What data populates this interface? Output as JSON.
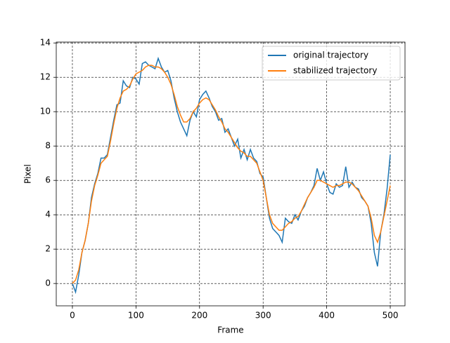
{
  "chart_data": {
    "type": "line",
    "x_label": "Frame",
    "y_label": "Pixel",
    "x": [
      0,
      5,
      10,
      15,
      20,
      25,
      30,
      35,
      40,
      45,
      50,
      55,
      60,
      65,
      70,
      75,
      80,
      85,
      90,
      95,
      100,
      105,
      110,
      115,
      120,
      125,
      130,
      135,
      140,
      145,
      150,
      155,
      160,
      165,
      170,
      175,
      180,
      185,
      190,
      195,
      200,
      205,
      210,
      215,
      220,
      225,
      230,
      235,
      240,
      245,
      250,
      255,
      260,
      265,
      270,
      275,
      280,
      285,
      290,
      295,
      300,
      305,
      310,
      315,
      320,
      325,
      330,
      335,
      340,
      345,
      350,
      355,
      360,
      365,
      370,
      375,
      380,
      385,
      390,
      395,
      400,
      405,
      410,
      415,
      420,
      425,
      430,
      435,
      440,
      445,
      450,
      455,
      460,
      465,
      470,
      475,
      480,
      485,
      490,
      495,
      500
    ],
    "series": [
      {
        "name": "original trajectory",
        "color": "#1f77b4",
        "values": [
          0.0,
          -0.5,
          0.5,
          1.8,
          2.5,
          3.5,
          5.0,
          5.8,
          6.4,
          7.3,
          7.3,
          7.5,
          8.5,
          9.5,
          10.4,
          10.5,
          11.8,
          11.5,
          11.4,
          12.0,
          11.9,
          11.6,
          12.8,
          12.9,
          12.7,
          12.6,
          12.5,
          13.1,
          12.6,
          12.3,
          12.4,
          11.8,
          10.8,
          10.0,
          9.4,
          9.0,
          8.6,
          9.5,
          10.0,
          9.7,
          10.7,
          11.0,
          11.2,
          10.8,
          10.3,
          10.0,
          9.5,
          9.6,
          8.8,
          9.0,
          8.5,
          8.0,
          8.4,
          7.3,
          7.8,
          7.2,
          7.8,
          7.3,
          7.1,
          6.4,
          6.2,
          5.0,
          3.8,
          3.2,
          3.0,
          2.8,
          2.4,
          3.8,
          3.6,
          3.5,
          4.0,
          3.7,
          4.2,
          4.5,
          5.0,
          5.3,
          5.7,
          6.7,
          6.0,
          6.5,
          5.8,
          5.3,
          5.2,
          5.8,
          5.6,
          5.7,
          6.8,
          5.6,
          5.9,
          5.6,
          5.5,
          5.0,
          4.8,
          4.5,
          3.5,
          1.8,
          1.0,
          3.0,
          4.0,
          5.5,
          7.5
        ]
      },
      {
        "name": "stabilized trajectory",
        "color": "#ff7f0e",
        "values": [
          0.0,
          0.2,
          0.8,
          1.8,
          2.5,
          3.5,
          4.8,
          5.7,
          6.3,
          7.0,
          7.2,
          7.4,
          8.3,
          9.3,
          10.2,
          10.8,
          11.2,
          11.3,
          11.5,
          11.9,
          12.2,
          12.3,
          12.4,
          12.6,
          12.7,
          12.7,
          12.6,
          12.6,
          12.5,
          12.3,
          12.0,
          11.6,
          11.0,
          10.3,
          9.8,
          9.4,
          9.4,
          9.6,
          10.0,
          10.2,
          10.5,
          10.7,
          10.8,
          10.7,
          10.4,
          10.1,
          9.7,
          9.4,
          9.0,
          8.8,
          8.5,
          8.2,
          7.9,
          7.7,
          7.6,
          7.4,
          7.4,
          7.2,
          7.0,
          6.5,
          6.0,
          5.0,
          4.0,
          3.5,
          3.3,
          3.1,
          3.1,
          3.3,
          3.5,
          3.6,
          3.8,
          3.9,
          4.2,
          4.6,
          5.0,
          5.3,
          5.6,
          6.0,
          6.0,
          5.9,
          5.8,
          5.7,
          5.6,
          5.7,
          5.7,
          5.8,
          5.9,
          5.9,
          5.8,
          5.6,
          5.4,
          5.1,
          4.8,
          4.5,
          3.8,
          2.8,
          2.4,
          3.0,
          3.9,
          4.8,
          5.7
        ]
      }
    ],
    "xlim": [
      -25.4,
      523.2
    ],
    "ylim": [
      -1.3,
      14.05
    ],
    "xticks": [
      0,
      100,
      200,
      300,
      400,
      500
    ],
    "yticks": [
      0,
      2,
      4,
      6,
      8,
      10,
      12,
      14
    ],
    "grid": true,
    "legend": "upper right"
  }
}
